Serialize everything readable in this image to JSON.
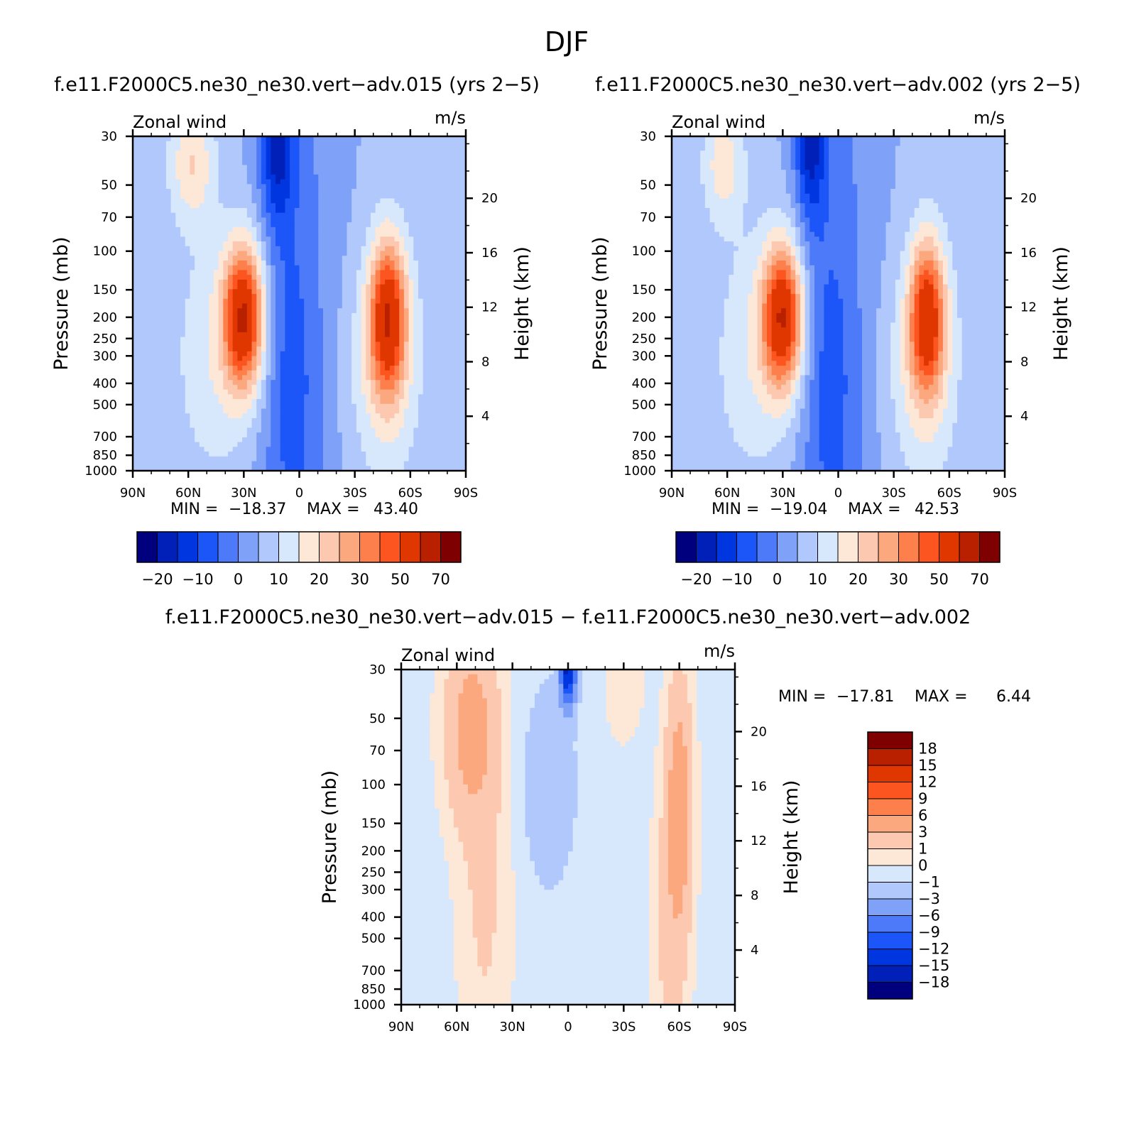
{
  "figure": {
    "season": "DJF",
    "panels": [
      {
        "title": "f.e11.F2000C5.ne30_ne30.vert-adv.015 (yrs 2-5)",
        "left_label": "Zonal wind",
        "right_label": "m/s",
        "min_label": "MIN =",
        "min_value": "-18.37",
        "max_label": "MAX =",
        "max_value": "43.40"
      },
      {
        "title": "f.e11.F2000C5.ne30_ne30.vert-adv.002 (yrs 2-5)",
        "left_label": "Zonal wind",
        "right_label": "m/s",
        "min_label": "MIN =",
        "min_value": "-19.04",
        "max_label": "MAX =",
        "max_value": "42.53"
      },
      {
        "title": "f.e11.F2000C5.ne30_ne30.vert-adv.015 - f.e11.F2000C5.ne30_ne30.vert-adv.002",
        "left_label": "Zonal wind",
        "right_label": "m/s",
        "min_label": "MIN =",
        "min_value": "-17.81",
        "max_label": "MAX =",
        "max_value": "6.44"
      }
    ]
  },
  "chart_data": [
    {
      "type": "heatmap",
      "title": "f.e11.F2000C5.ne30_ne30.vert-adv.015 (yrs 2-5)",
      "variable": "Zonal wind",
      "units": "m/s",
      "xlabel": "",
      "ylabel": "Pressure (mb)",
      "y2label": "Height (km)",
      "x_ticks": [
        "90N",
        "60N",
        "30N",
        "0",
        "30S",
        "60S",
        "90S"
      ],
      "y_ticks": [
        "30",
        "50",
        "70",
        "100",
        "150",
        "200",
        "250",
        "300",
        "400",
        "500",
        "700",
        "850",
        "1000"
      ],
      "y_log_scale": true,
      "y_range": [
        1000,
        30
      ],
      "y2_ticks": [
        "4",
        "8",
        "12",
        "16",
        "20"
      ],
      "x_range": [
        90,
        -90
      ],
      "min": -18.37,
      "max": 43.4,
      "jets": [
        {
          "lat": 30,
          "pressure": 200,
          "value": 42
        },
        {
          "lat": -48,
          "pressure": 200,
          "value": 38
        },
        {
          "lat": 55,
          "pressure": 40,
          "value": 20
        }
      ],
      "colorbar": {
        "orientation": "horizontal",
        "levels": [
          "-20",
          "-10",
          "0",
          "10",
          "20",
          "30",
          "50",
          "70"
        ],
        "colors": [
          "#00007f",
          "#0020b8",
          "#0036e0",
          "#1c55f8",
          "#4c7af8",
          "#7fa2f8",
          "#b0c8fc",
          "#d8e8fc",
          "#fde8d8",
          "#fcc8b0",
          "#fca87f",
          "#fc7f4c",
          "#fc5520",
          "#e03600",
          "#b82000",
          "#7f0000"
        ]
      }
    },
    {
      "type": "heatmap",
      "title": "f.e11.F2000C5.ne30_ne30.vert-adv.002 (yrs 2-5)",
      "variable": "Zonal wind",
      "units": "m/s",
      "xlabel": "",
      "ylabel": "Pressure (mb)",
      "y2label": "Height (km)",
      "x_ticks": [
        "90N",
        "60N",
        "30N",
        "0",
        "30S",
        "60S",
        "90S"
      ],
      "y_ticks": [
        "30",
        "50",
        "70",
        "100",
        "150",
        "200",
        "250",
        "300",
        "400",
        "500",
        "700",
        "850",
        "1000"
      ],
      "y_log_scale": true,
      "y_range": [
        1000,
        30
      ],
      "y2_ticks": [
        "4",
        "8",
        "12",
        "16",
        "20"
      ],
      "x_range": [
        90,
        -90
      ],
      "min": -19.04,
      "max": 42.53,
      "jets": [
        {
          "lat": 30,
          "pressure": 200,
          "value": 42
        },
        {
          "lat": -48,
          "pressure": 200,
          "value": 36
        },
        {
          "lat": 60,
          "pressure": 40,
          "value": 14
        }
      ],
      "colorbar": {
        "orientation": "horizontal",
        "levels": [
          "-20",
          "-10",
          "0",
          "10",
          "20",
          "30",
          "50",
          "70"
        ],
        "colors": [
          "#00007f",
          "#0020b8",
          "#0036e0",
          "#1c55f8",
          "#4c7af8",
          "#7fa2f8",
          "#b0c8fc",
          "#d8e8fc",
          "#fde8d8",
          "#fcc8b0",
          "#fca87f",
          "#fc7f4c",
          "#fc5520",
          "#e03600",
          "#b82000",
          "#7f0000"
        ]
      }
    },
    {
      "type": "heatmap",
      "title": "f.e11.F2000C5.ne30_ne30.vert-adv.015 - f.e11.F2000C5.ne30_ne30.vert-adv.002",
      "variable": "Zonal wind",
      "units": "m/s",
      "xlabel": "",
      "ylabel": "Pressure (mb)",
      "y2label": "Height (km)",
      "x_ticks": [
        "90N",
        "60N",
        "30N",
        "0",
        "30S",
        "60S",
        "90S"
      ],
      "y_ticks": [
        "30",
        "50",
        "70",
        "100",
        "150",
        "200",
        "250",
        "300",
        "400",
        "500",
        "700",
        "850",
        "1000"
      ],
      "y_log_scale": true,
      "y_range": [
        1000,
        30
      ],
      "y2_ticks": [
        "4",
        "8",
        "12",
        "16",
        "20"
      ],
      "x_range": [
        90,
        -90
      ],
      "min": -17.81,
      "max": 6.44,
      "features": [
        {
          "lat": 55,
          "pressure": 60,
          "value": 4
        },
        {
          "lat": 0,
          "pressure": 35,
          "value": -15
        },
        {
          "lat": -60,
          "pressure": 150,
          "value": 4
        }
      ],
      "colorbar": {
        "orientation": "vertical",
        "levels": [
          "18",
          "15",
          "12",
          "9",
          "6",
          "3",
          "1",
          "0",
          "-1",
          "-3",
          "-6",
          "-9",
          "-12",
          "-15",
          "-18"
        ],
        "colors": [
          "#7f0000",
          "#b82000",
          "#e03600",
          "#fc5520",
          "#fc7f4c",
          "#fca87f",
          "#fcc8b0",
          "#fde8d8",
          "#d8e8fc",
          "#b0c8fc",
          "#7fa2f8",
          "#4c7af8",
          "#1c55f8",
          "#0036e0",
          "#0020b8",
          "#00007f"
        ]
      }
    }
  ]
}
